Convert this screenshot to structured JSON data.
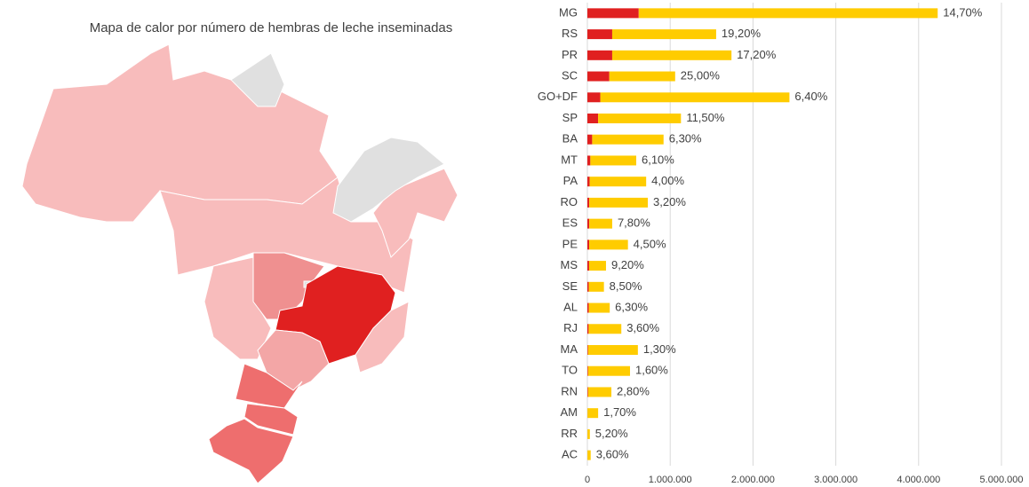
{
  "map": {
    "title": "Mapa de calor por número de hembras de leche inseminadas"
  },
  "chart_data": {
    "type": "stacked_barh",
    "categories": [
      "MG",
      "RS",
      "PR",
      "SC",
      "GO+DF",
      "SP",
      "BA",
      "MT",
      "PA",
      "RO",
      "ES",
      "PE",
      "MS",
      "SE",
      "AL",
      "RJ",
      "MA",
      "TO",
      "RN",
      "AM",
      "RR",
      "AC"
    ],
    "series": [
      {
        "color": "#e02020",
        "values": [
          620000,
          300000,
          300000,
          265000,
          156000,
          130000,
          58000,
          36000,
          28000,
          23000,
          23000,
          22000,
          21000,
          17000,
          17000,
          15000,
          8000,
          8000,
          8000,
          2000,
          1600,
          1400
        ]
      },
      {
        "color": "#ffcc00",
        "values": [
          3610000,
          1255000,
          1440000,
          795000,
          2284000,
          1000000,
          862000,
          554000,
          682000,
          707000,
          277000,
          468000,
          204000,
          183000,
          253000,
          395000,
          602000,
          507000,
          282000,
          128000,
          28400,
          38600
        ]
      }
    ],
    "data_labels": [
      "14,70%",
      "19,20%",
      "17,20%",
      "25,00%",
      "6,40%",
      "11,50%",
      "6,30%",
      "6,10%",
      "4,00%",
      "3,20%",
      "7,80%",
      "4,50%",
      "9,20%",
      "8,50%",
      "6,30%",
      "3,60%",
      "1,30%",
      "1,60%",
      "2,80%",
      "1,70%",
      "5,20%",
      "3,60%"
    ],
    "xlim": [
      0,
      5000000
    ],
    "xticks": [
      0,
      {
        "value": 1000000,
        "label": "1.000.000"
      },
      {
        "value": 2000000,
        "label": "2.000.000"
      },
      {
        "value": 3000000,
        "label": "3.000.000"
      },
      {
        "value": 4000000,
        "label": "4.000.000"
      },
      {
        "value": 5000000,
        "label": "5.000.000"
      }
    ],
    "grid": true
  }
}
